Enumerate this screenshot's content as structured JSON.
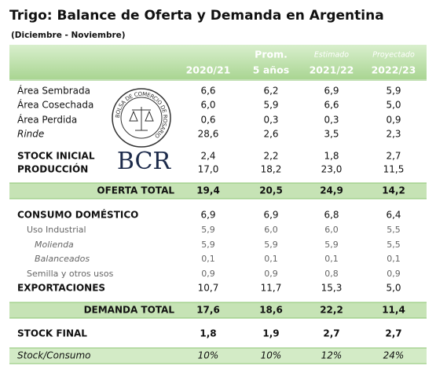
{
  "header": {
    "title": "Trigo: Balance de Oferta y Demanda en Argentina",
    "subtitle": "(Diciembre - Noviembre)"
  },
  "logo": {
    "seal": "BOLSA DE COMERCIO DE ROSARIO",
    "text": "BCR"
  },
  "table": {
    "columns": [
      [
        "2020/21"
      ],
      [
        "Prom.",
        "5 años"
      ],
      [
        "Estimado",
        "2021/22"
      ],
      [
        "Proyectado",
        "2022/23"
      ]
    ],
    "rows": [
      [
        "Área Sembrada",
        "6,6",
        "6,2",
        "6,9",
        "5,9"
      ],
      [
        "Área Cosechada",
        "6,0",
        "5,9",
        "6,6",
        "5,0"
      ],
      [
        "Área Perdida",
        "0,6",
        "0,3",
        "0,3",
        "0,9"
      ],
      [
        "Rinde",
        "28,6",
        "2,6",
        "3,5",
        "2,3"
      ],
      [
        "STOCK INICIAL",
        "2,4",
        "2,2",
        "1,8",
        "2,7"
      ],
      [
        "PRODUCCIÓN",
        "17,0",
        "18,2",
        "23,0",
        "11,5"
      ],
      [
        "OFERTA TOTAL",
        "19,4",
        "20,5",
        "24,9",
        "14,2"
      ],
      [
        "CONSUMO DOMÉSTICO",
        "6,9",
        "6,9",
        "6,8",
        "6,4"
      ],
      [
        "Uso Industrial",
        "5,9",
        "6,0",
        "6,0",
        "5,5"
      ],
      [
        "Molienda",
        "5,9",
        "5,9",
        "5,9",
        "5,5"
      ],
      [
        "Balanceados",
        "0,1",
        "0,1",
        "0,1",
        "0,1"
      ],
      [
        "Semilla y otros usos",
        "0,9",
        "0,9",
        "0,8",
        "0,9"
      ],
      [
        "EXPORTACIONES",
        "10,7",
        "11,7",
        "15,3",
        "5,0"
      ],
      [
        "DEMANDA TOTAL",
        "17,6",
        "18,6",
        "22,2",
        "11,4"
      ],
      [
        "STOCK FINAL",
        "1,8",
        "1,9",
        "2,7",
        "2,7"
      ],
      [
        "Stock/Consumo",
        "10%",
        "10%",
        "12%",
        "24%"
      ]
    ]
  }
}
